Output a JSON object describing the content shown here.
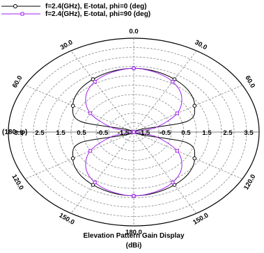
{
  "chart_data": {
    "type": "polar-line",
    "title": "Elevation Pattern Gain Display",
    "units": "(dBi)",
    "left_label": "(180−φ)",
    "radial_range": [
      -5,
      5
    ],
    "radial_step": 1,
    "radial_tick_labels": [
      "3.5",
      "2.5",
      "1.5",
      "0.5",
      "-0.5",
      "-1.5",
      "-1.5",
      "-0.5",
      "0.5",
      "1.5",
      "2.5",
      "3.5"
    ],
    "angle_labels": [
      {
        "angle": 0,
        "text": "0.0"
      },
      {
        "angle": 30,
        "text": "30.0"
      },
      {
        "angle": 60,
        "text": "60.0"
      },
      {
        "angle": 120,
        "text": "120.0"
      },
      {
        "angle": 150,
        "text": "150.0"
      },
      {
        "angle": 180,
        "text": "180.0"
      },
      {
        "angle": -150,
        "text": "150.0"
      },
      {
        "angle": -120,
        "text": "120.0"
      },
      {
        "angle": -60,
        "text": "60.0"
      },
      {
        "angle": -30,
        "text": "30.0"
      }
    ],
    "series": [
      {
        "name": "f=2.4(GHz), E-total, phi=0 (deg)",
        "color": "#000000",
        "marker": "circle",
        "angles": [
          0,
          15,
          30,
          45,
          60,
          75,
          90,
          105,
          120,
          135,
          150,
          165,
          180,
          195,
          210,
          225,
          240,
          255,
          270,
          285,
          300,
          315,
          330,
          345
        ],
        "gain": [
          1.8,
          1.7,
          1.5,
          1.2,
          0.6,
          -0.6,
          -5.0,
          -0.6,
          0.6,
          1.2,
          1.5,
          1.7,
          1.8,
          1.7,
          1.5,
          1.2,
          0.6,
          -0.6,
          -5.0,
          -0.6,
          0.6,
          1.2,
          1.5,
          1.7
        ],
        "marker_angles": [
          0,
          30,
          60,
          90,
          120,
          150,
          180,
          210,
          240,
          270,
          300,
          330
        ]
      },
      {
        "name": "f=2.4(GHz), E-total, phi=90 (deg)",
        "color": "#a020f0",
        "marker": "square",
        "angles": [
          0,
          15,
          30,
          45,
          60,
          75,
          90,
          105,
          120,
          135,
          150,
          165,
          180,
          195,
          210,
          225,
          240,
          255,
          270,
          285,
          300,
          315,
          330,
          345
        ],
        "gain": [
          1.8,
          1.6,
          1.2,
          0.4,
          -1.0,
          -3.2,
          -5.0,
          -3.2,
          -1.0,
          0.4,
          1.2,
          1.6,
          1.8,
          1.6,
          1.2,
          0.4,
          -1.0,
          -3.2,
          -5.0,
          -3.2,
          -1.0,
          0.4,
          1.2,
          1.6
        ],
        "marker_angles": [
          0,
          30,
          60,
          90,
          120,
          150,
          180,
          210,
          240,
          270,
          300,
          330
        ]
      }
    ]
  }
}
